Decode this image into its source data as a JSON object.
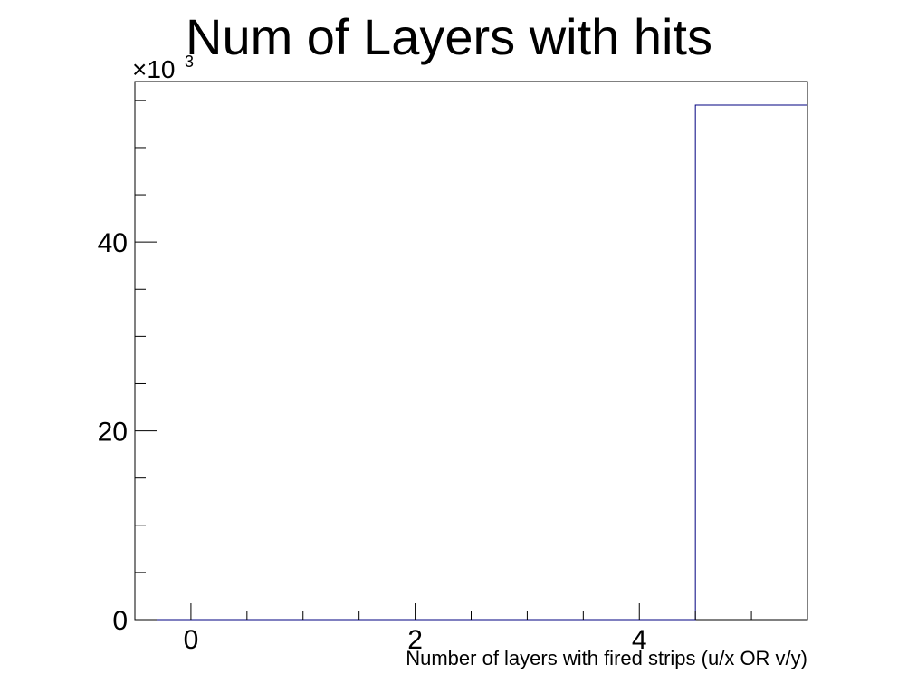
{
  "chart_data": {
    "type": "bar",
    "title": "Num of Layers with hits",
    "xlabel": "Number of layers with fired strips (u/x OR v/y)",
    "ylabel": "",
    "y_multiplier": "×10",
    "y_multiplier_exponent": "3",
    "xlim": [
      -0.5,
      5.5
    ],
    "ylim": [
      0,
      57
    ],
    "x_major_ticks": [
      0,
      2,
      4
    ],
    "x_minor_step": 0.5,
    "y_major_ticks": [
      0,
      20,
      40
    ],
    "y_minor_step": 5,
    "bins": [
      {
        "low": -0.5,
        "high": 0.5,
        "value": 0
      },
      {
        "low": 0.5,
        "high": 1.5,
        "value": 0
      },
      {
        "low": 1.5,
        "high": 2.5,
        "value": 0
      },
      {
        "low": 2.5,
        "high": 3.5,
        "value": 0
      },
      {
        "low": 3.5,
        "high": 4.5,
        "value": 0
      },
      {
        "low": 4.5,
        "high": 5.5,
        "value": 54.5
      }
    ],
    "line_color": "#000080",
    "grid": false
  }
}
